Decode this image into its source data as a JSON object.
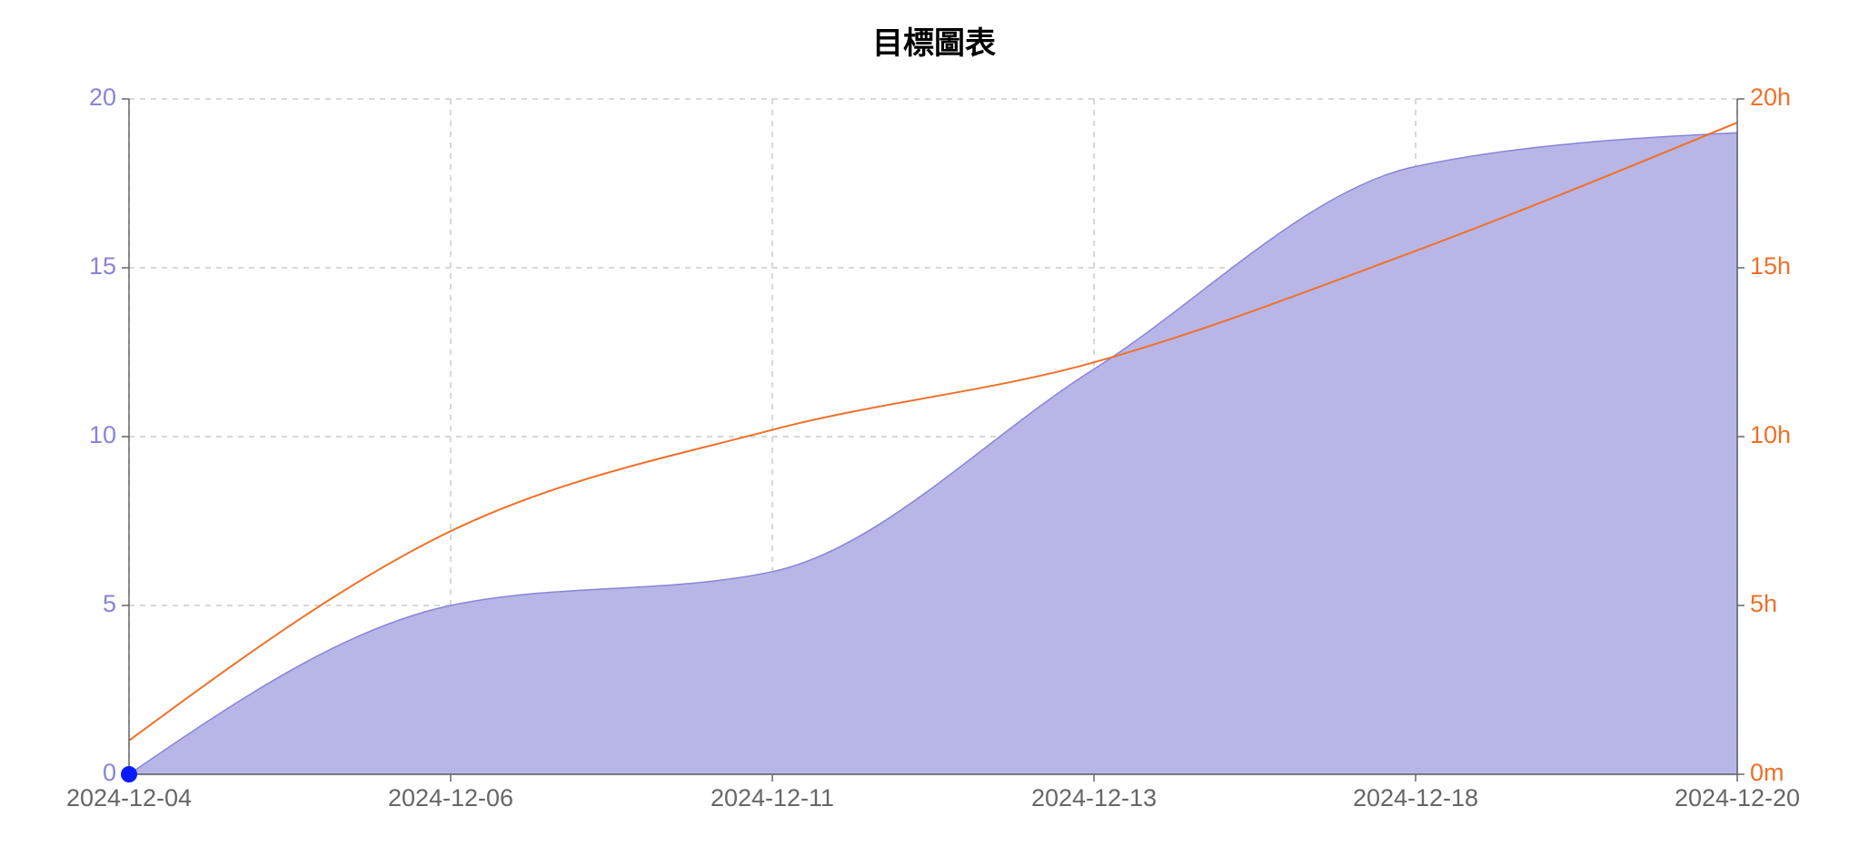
{
  "chart_data": {
    "type": "area",
    "title": "目標圖表",
    "categories": [
      "2024-12-04",
      "2024-12-06",
      "2024-12-11",
      "2024-12-13",
      "2024-12-18",
      "2024-12-20"
    ],
    "series": [
      {
        "type": "area",
        "color": "#8884d8",
        "fill": "#b8b6e6",
        "axis": "y",
        "values": [
          0,
          5,
          6,
          12,
          18,
          19
        ]
      },
      {
        "type": "line",
        "color": "#f07028",
        "axis": "y2",
        "values": [
          1,
          7.2,
          10.2,
          12.2,
          15.5,
          19.3
        ]
      }
    ],
    "ylim": [
      0,
      20
    ],
    "yticks": [
      0,
      5,
      10,
      15,
      20
    ],
    "y2lim": [
      0,
      20
    ],
    "y2ticks": [
      {
        "value": 0,
        "label": "0m"
      },
      {
        "value": 5,
        "label": "5h"
      },
      {
        "value": 10,
        "label": "10h"
      },
      {
        "value": 15,
        "label": "15h"
      },
      {
        "value": 20,
        "label": "20h"
      }
    ],
    "grid": true,
    "active_point": {
      "series": 0,
      "index": 0,
      "color": "#0a1aff"
    }
  }
}
